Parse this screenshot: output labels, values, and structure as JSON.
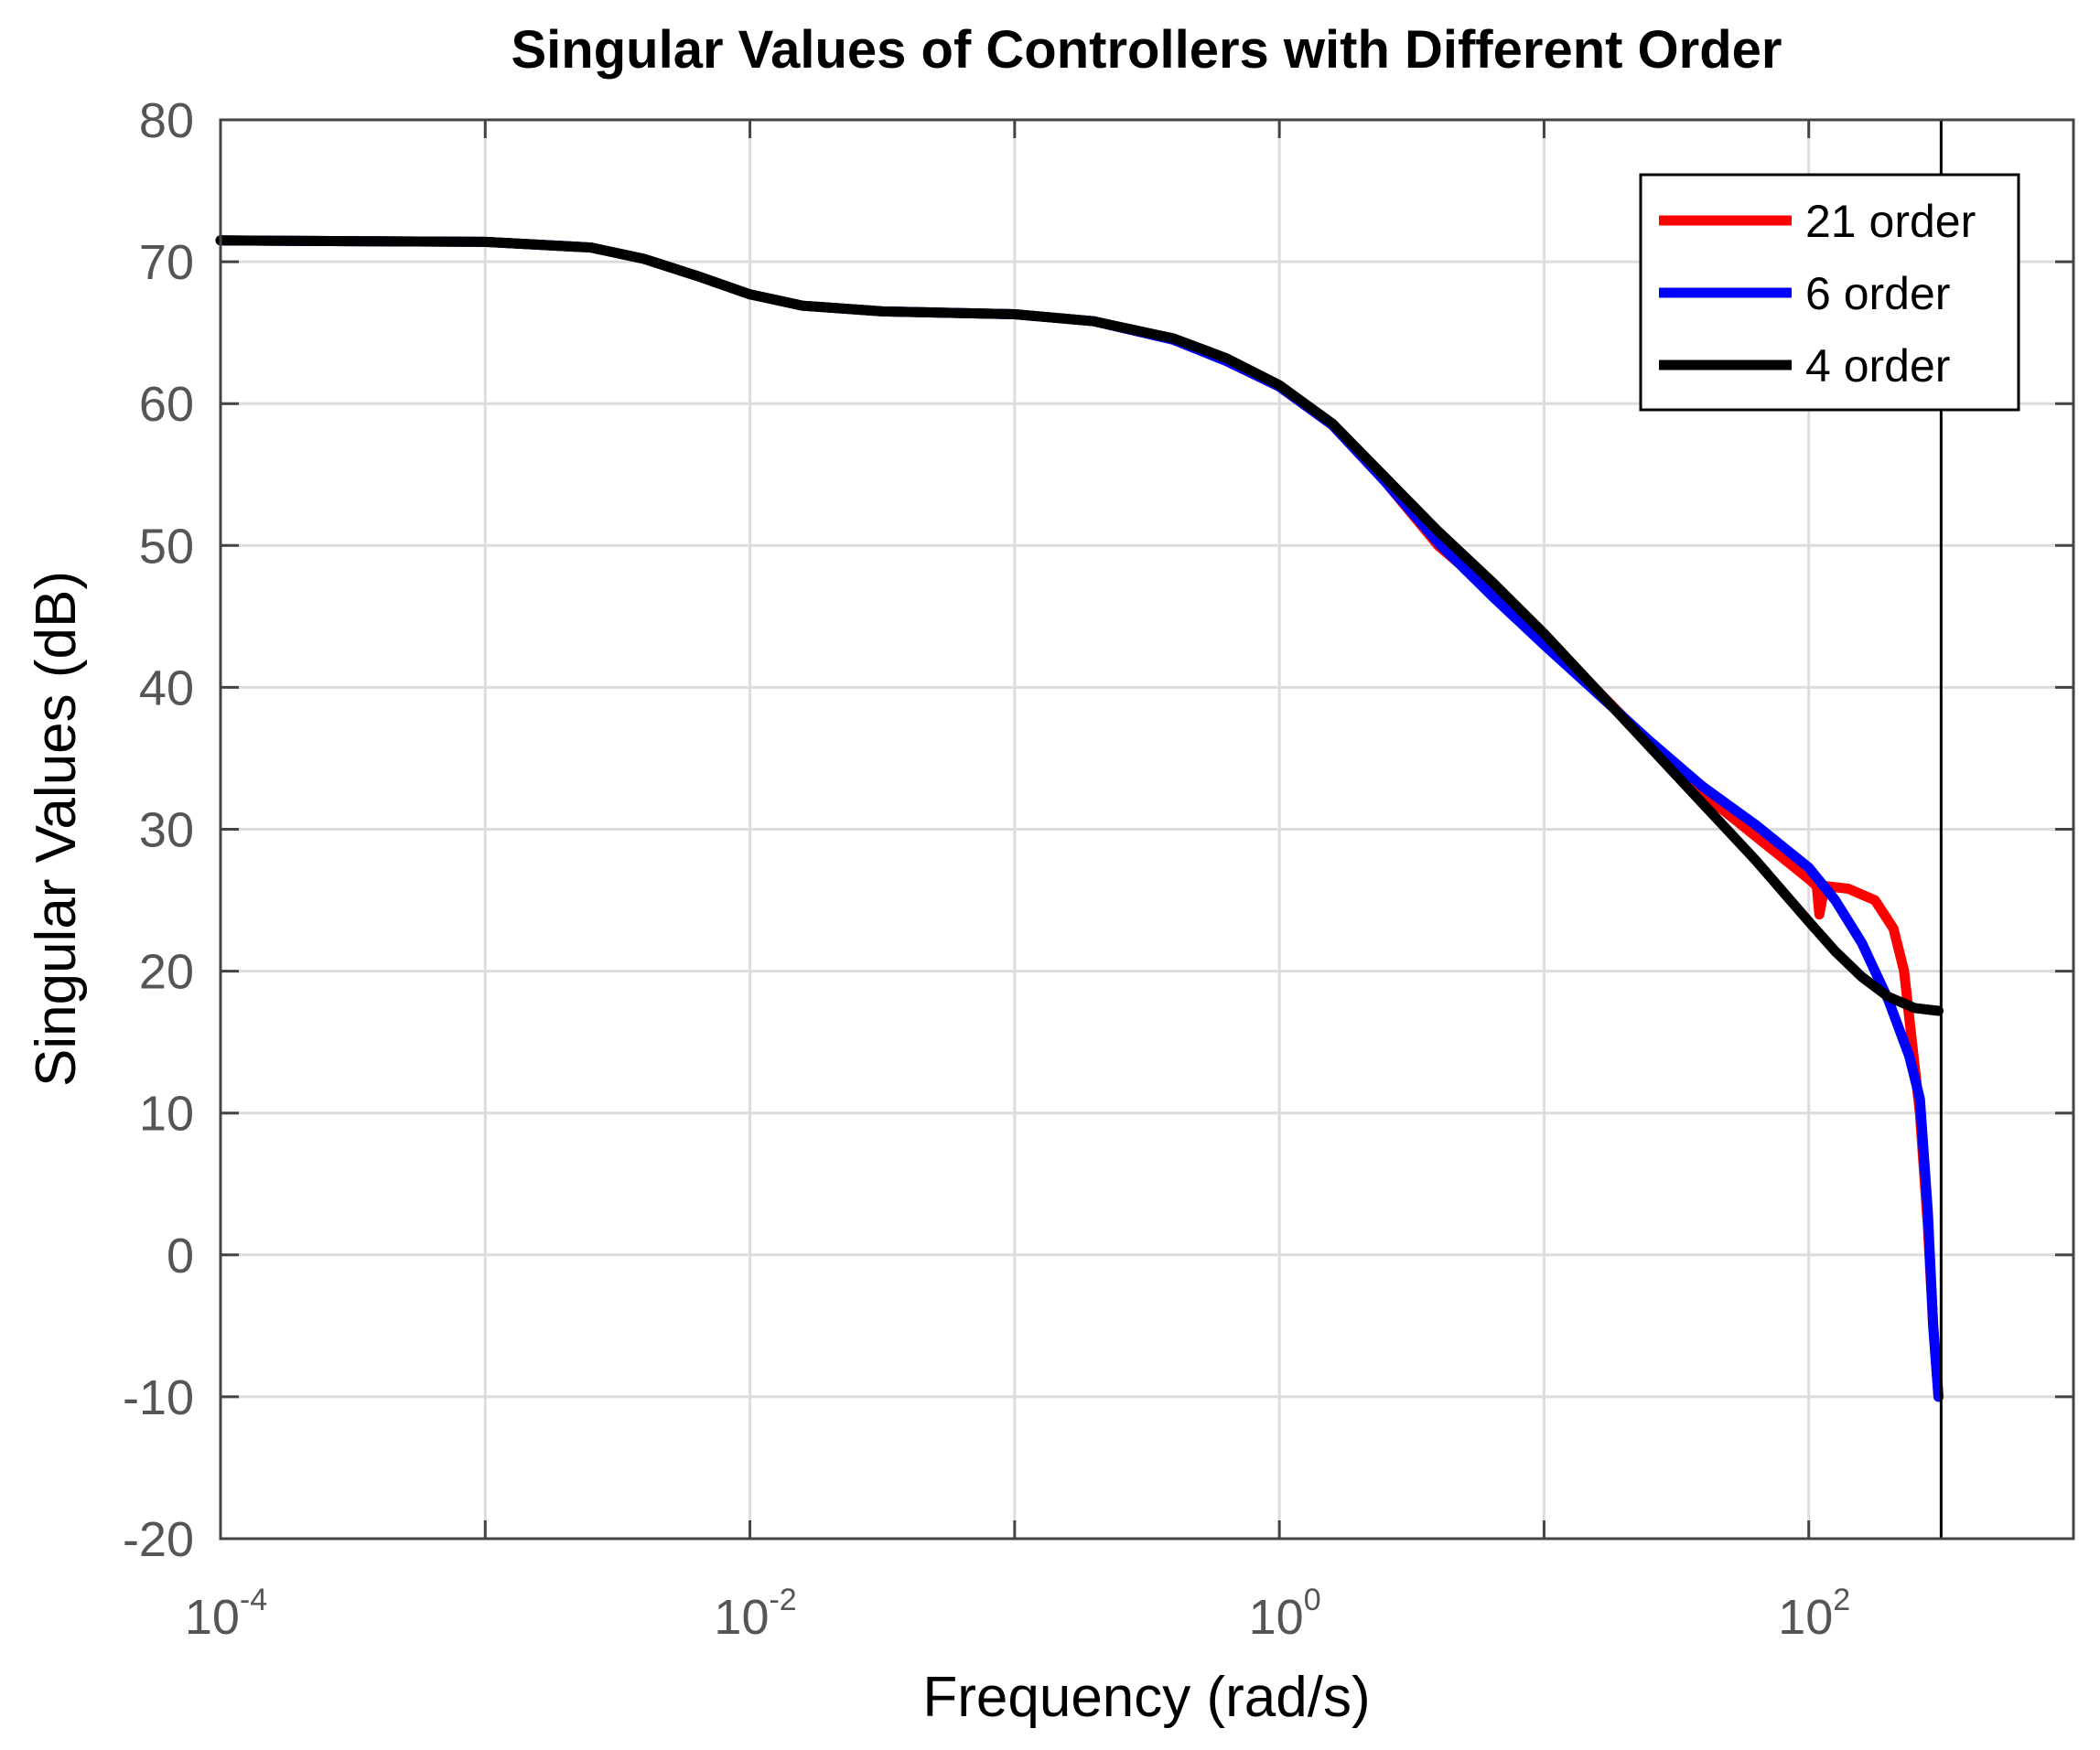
{
  "chart_data": {
    "type": "line",
    "title": "Singular Values of Controllers with Different Order",
    "xlabel": "Frequency (rad/s)",
    "ylabel": "Singular Values (dB)",
    "xscale": "log",
    "xlim_exp": [
      -4,
      3
    ],
    "ylim": [
      -20,
      80
    ],
    "grid": true,
    "legend_location": "top-right",
    "x_tick_labels": [
      {
        "base": "10",
        "exp": "-4"
      },
      {
        "base": "10",
        "exp": "-2"
      },
      {
        "base": "10",
        "exp": "0"
      },
      {
        "base": "10",
        "exp": "2"
      }
    ],
    "x_tick_exps": [
      -4,
      -2,
      0,
      2
    ],
    "y_ticks": [
      -20,
      -10,
      0,
      10,
      20,
      30,
      40,
      50,
      60,
      70,
      80
    ],
    "vline_x_exp": 2.5,
    "series": [
      {
        "name": "21 order",
        "color": "#ff0000",
        "points": [
          [
            -4,
            71.5
          ],
          [
            -3,
            71.4
          ],
          [
            -2.6,
            71.0
          ],
          [
            -2.4,
            70.2
          ],
          [
            -2.2,
            69.0
          ],
          [
            -2.0,
            67.7
          ],
          [
            -1.8,
            66.9
          ],
          [
            -1.5,
            66.5
          ],
          [
            -1.0,
            66.3
          ],
          [
            -0.7,
            65.8
          ],
          [
            -0.4,
            64.5
          ],
          [
            -0.2,
            63.0
          ],
          [
            0,
            61.2
          ],
          [
            0.2,
            58.5
          ],
          [
            0.4,
            54.5
          ],
          [
            0.6,
            50.0
          ],
          [
            0.8,
            46.8
          ],
          [
            1.0,
            43.3
          ],
          [
            1.2,
            39.8
          ],
          [
            1.4,
            36.0
          ],
          [
            1.6,
            32.5
          ],
          [
            1.8,
            29.5
          ],
          [
            1.9,
            28.0
          ],
          [
            2.0,
            26.5
          ],
          [
            2.03,
            26.0
          ],
          [
            2.04,
            24.0
          ],
          [
            2.06,
            26.0
          ],
          [
            2.15,
            25.8
          ],
          [
            2.25,
            25.0
          ],
          [
            2.32,
            23.0
          ],
          [
            2.36,
            20.0
          ],
          [
            2.39,
            15.0
          ],
          [
            2.42,
            10.0
          ],
          [
            2.45,
            2.0
          ],
          [
            2.47,
            -5.0
          ],
          [
            2.49,
            -10.0
          ]
        ]
      },
      {
        "name": "6 order",
        "color": "#0000ff",
        "points": [
          [
            -4,
            71.5
          ],
          [
            -3,
            71.4
          ],
          [
            -2.6,
            71.0
          ],
          [
            -2.4,
            70.2
          ],
          [
            -2.2,
            69.0
          ],
          [
            -2.0,
            67.7
          ],
          [
            -1.8,
            66.9
          ],
          [
            -1.5,
            66.5
          ],
          [
            -1.0,
            66.3
          ],
          [
            -0.7,
            65.8
          ],
          [
            -0.4,
            64.5
          ],
          [
            -0.2,
            63.0
          ],
          [
            0,
            61.2
          ],
          [
            0.2,
            58.5
          ],
          [
            0.4,
            54.5
          ],
          [
            0.6,
            50.2
          ],
          [
            0.8,
            46.5
          ],
          [
            1.0,
            43.0
          ],
          [
            1.2,
            39.6
          ],
          [
            1.4,
            36.2
          ],
          [
            1.6,
            33.0
          ],
          [
            1.8,
            30.3
          ],
          [
            2.0,
            27.3
          ],
          [
            2.1,
            25.0
          ],
          [
            2.2,
            22.0
          ],
          [
            2.3,
            18.0
          ],
          [
            2.38,
            14.0
          ],
          [
            2.42,
            11.0
          ],
          [
            2.45,
            3.0
          ],
          [
            2.47,
            -5.0
          ],
          [
            2.49,
            -10.0
          ]
        ]
      },
      {
        "name": "4 order",
        "color": "#000000",
        "points": [
          [
            -4,
            71.5
          ],
          [
            -3,
            71.4
          ],
          [
            -2.6,
            71.0
          ],
          [
            -2.4,
            70.2
          ],
          [
            -2.2,
            69.0
          ],
          [
            -2.0,
            67.7
          ],
          [
            -1.8,
            66.9
          ],
          [
            -1.5,
            66.5
          ],
          [
            -1.0,
            66.3
          ],
          [
            -0.7,
            65.8
          ],
          [
            -0.4,
            64.6
          ],
          [
            -0.2,
            63.2
          ],
          [
            0,
            61.3
          ],
          [
            0.2,
            58.6
          ],
          [
            0.4,
            54.8
          ],
          [
            0.6,
            51.0
          ],
          [
            0.8,
            47.5
          ],
          [
            1.0,
            43.8
          ],
          [
            1.2,
            39.8
          ],
          [
            1.4,
            35.8
          ],
          [
            1.6,
            31.8
          ],
          [
            1.8,
            27.8
          ],
          [
            2.0,
            23.5
          ],
          [
            2.1,
            21.4
          ],
          [
            2.2,
            19.6
          ],
          [
            2.3,
            18.2
          ],
          [
            2.4,
            17.4
          ],
          [
            2.49,
            17.2
          ]
        ]
      }
    ]
  }
}
